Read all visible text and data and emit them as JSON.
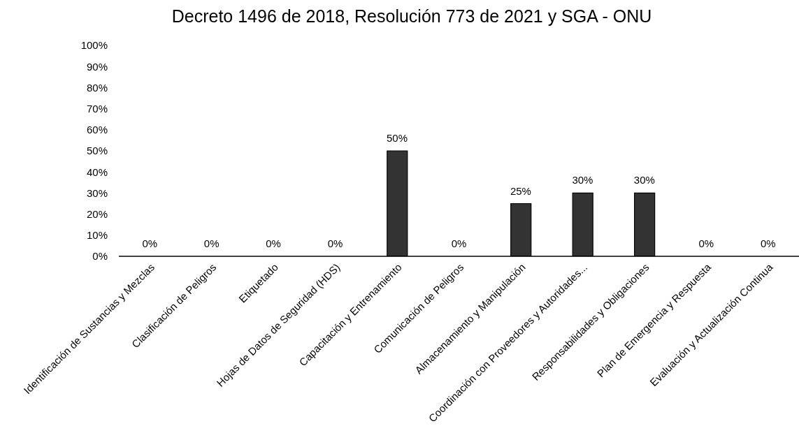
{
  "chart_data": {
    "type": "bar",
    "title": "Decreto 1496 de 2018, Resolución 773 de 2021 y SGA - ONU",
    "categories": [
      "Identificación de Sustancias y Mezclas",
      "Clasificación de Peligros",
      "Etiquetado",
      "Hojas de Datos de Seguridad (HDS)",
      "Capacitación y Entrenamiento",
      "Comunicación de Peligros",
      "Almacenamiento y Manipulación",
      "Coordinación con Proveedores y Autoridades...",
      "Responsabilidades y Obligaciones",
      "Plan de Emergencia y Respuesta",
      "Evaluación y Actualización Continua"
    ],
    "values": [
      0,
      0,
      0,
      0,
      50,
      0,
      25,
      30,
      30,
      0,
      0
    ],
    "value_labels": [
      "0%",
      "0%",
      "0%",
      "0%",
      "50%",
      "0%",
      "25%",
      "30%",
      "30%",
      "0%",
      "0%"
    ],
    "color": "#333333",
    "ylim": [
      0,
      100
    ],
    "yticks": [
      {
        "value": 0,
        "label": "0%"
      },
      {
        "value": 10,
        "label": "10%"
      },
      {
        "value": 20,
        "label": "20%"
      },
      {
        "value": 30,
        "label": "30%"
      },
      {
        "value": 40,
        "label": "40%"
      },
      {
        "value": 50,
        "label": "50%"
      },
      {
        "value": 60,
        "label": "60%"
      },
      {
        "value": 70,
        "label": "70%"
      },
      {
        "value": 80,
        "label": "80%"
      },
      {
        "value": 90,
        "label": "90%"
      },
      {
        "value": 100,
        "label": "100%"
      }
    ]
  }
}
